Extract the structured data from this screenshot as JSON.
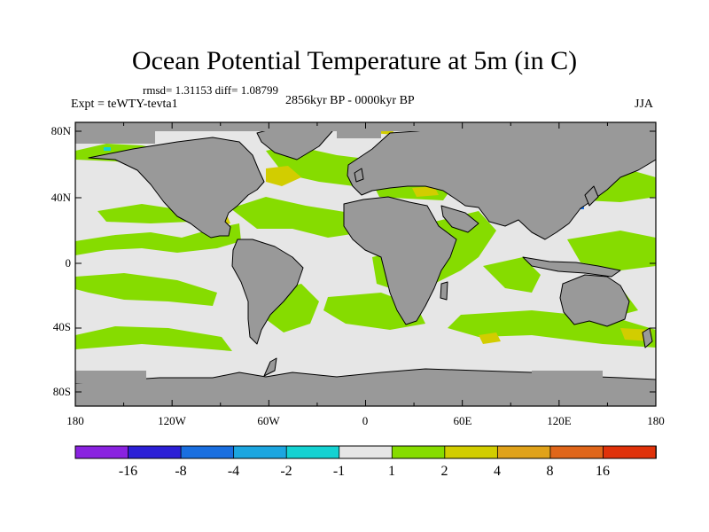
{
  "title": "Ocean Potential Temperature at 5m (in C)",
  "stats_text": "rmsd= 1.31153 diff= 1.08799",
  "period": "2856kyr BP - 0000kyr BP",
  "experiment": "Expt = teWTY-tevta1",
  "season": "JJA",
  "y_ticks": [
    "80N",
    "40N",
    "0",
    "40S",
    "80S"
  ],
  "x_ticks": [
    "180",
    "120W",
    "60W",
    "0",
    "60E",
    "120E",
    "180"
  ],
  "colorbar": {
    "labels": [
      "-16",
      "-8",
      "-4",
      "-2",
      "-1",
      "1",
      "2",
      "4",
      "8",
      "16"
    ],
    "colors": [
      "#8a22e0",
      "#2c1fd6",
      "#1a6fe0",
      "#1ca6e0",
      "#14d2d2",
      "#e6e6e6",
      "#86dc00",
      "#d2cd00",
      "#e0a21a",
      "#e0661a",
      "#e0320a"
    ]
  },
  "colors": {
    "land": "#999999",
    "ocean_neutral": "#e6e6e6",
    "warm_1_2": "#86dc00",
    "warm_2_4": "#d2cd00"
  }
}
